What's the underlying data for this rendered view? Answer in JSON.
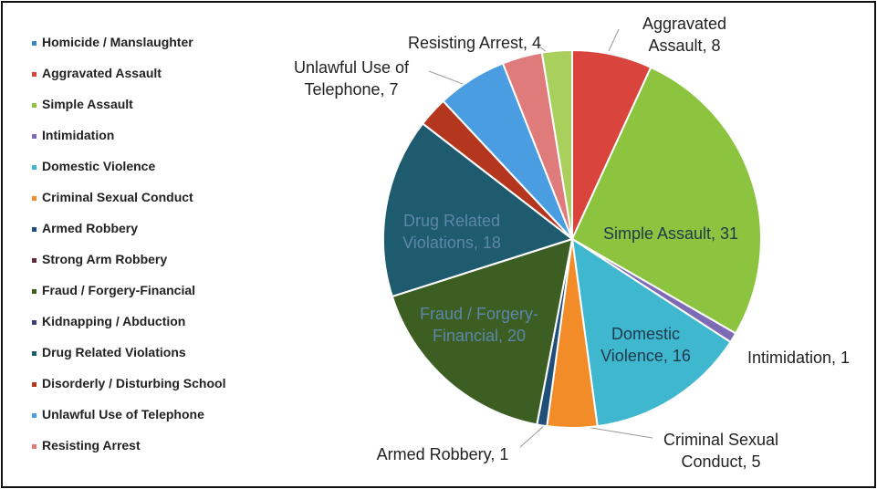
{
  "chart_data": {
    "type": "pie",
    "categories": [
      "Homicide / Manslaughter",
      "Aggravated Assault",
      "Simple Assault",
      "Intimidation",
      "Domestic Violence",
      "Criminal Sexual Conduct",
      "Armed Robbery",
      "Strong Arm Robbery",
      "Fraud / Forgery-Financial",
      "Kidnapping / Abduction",
      "Drug Related Violations",
      "Disorderly / Disturbing School",
      "Unlawful Use of Telephone",
      "Resisting Arrest",
      null
    ],
    "values": [
      0,
      8,
      31,
      1,
      16,
      5,
      1,
      0,
      20,
      0,
      18,
      3,
      7,
      4,
      3
    ],
    "value_labels": [
      null,
      "Aggravated Assault, 8",
      "Simple Assault, 31",
      "Intimidation, 1",
      "Domestic Violence, 16",
      "Criminal Sexual Conduct, 5",
      "Armed Robbery, 1",
      null,
      "Fraud / Forgery-Financial, 20",
      null,
      "Drug Related Violations, 18",
      null,
      "Unlawful Use of Telephone, 7",
      "Resisting Arrest, 4",
      null
    ],
    "colors": [
      "#3a87c8",
      "#d9453d",
      "#8dc43f",
      "#7e6bb5",
      "#3fb7cf",
      "#f28c28",
      "#1f4e79",
      "#5b2c3a",
      "#3c5e23",
      "#3a3f7a",
      "#1e5b6e",
      "#b5361f",
      "#4a9de0",
      "#e07b7b",
      "#a9cf5c"
    ],
    "legend": "left"
  }
}
